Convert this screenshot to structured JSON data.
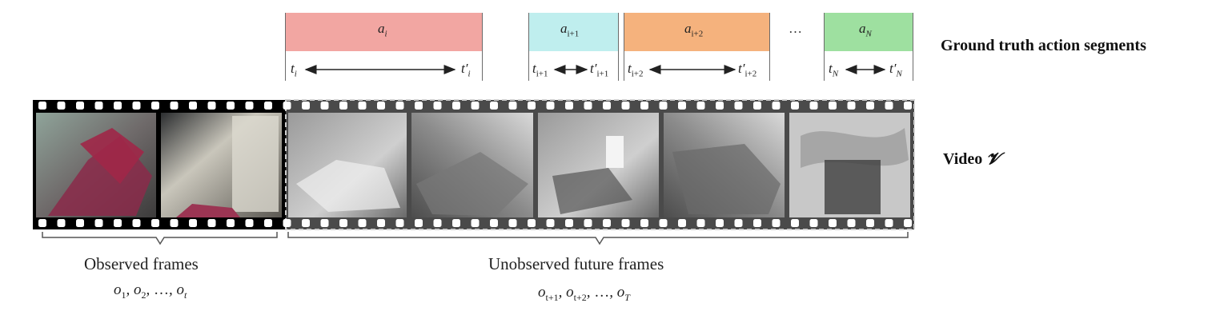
{
  "segments": [
    {
      "action": "a",
      "action_sub": "i",
      "sub_italic": true,
      "t_start": "t",
      "t_start_sub": "i",
      "t_end": "t′",
      "t_end_sub": "i",
      "color": "#f2a6a2"
    },
    {
      "action": "a",
      "action_sub": "i+1",
      "sub_italic": false,
      "t_start": "t",
      "t_start_sub": "i+1",
      "t_end": "t′",
      "t_end_sub": "i+1",
      "color": "#bfeeee"
    },
    {
      "action": "a",
      "action_sub": "i+2",
      "sub_italic": false,
      "t_start": "t",
      "t_start_sub": "i+2",
      "t_end": "t′",
      "t_end_sub": "i+2",
      "color": "#f5b27d"
    },
    {
      "action": "a",
      "action_sub": "N",
      "sub_italic": true,
      "t_start": "t",
      "t_start_sub": "N",
      "t_end": "t′",
      "t_end_sub": "N",
      "color": "#9ee0a0"
    }
  ],
  "ellipsis": "…",
  "labels": {
    "ground_truth": "Ground truth action segments",
    "video": "Video",
    "video_symbol": "𝓥",
    "observed": "Observed frames",
    "unobserved": "Unobserved future frames"
  },
  "observed_math": {
    "o1": "o",
    "o1_sub": "1",
    "o2": "o",
    "o2_sub": "2",
    "dots": "…",
    "ot": "o",
    "ot_sub": "t"
  },
  "unobserved_math": {
    "o1": "o",
    "o1_sub": "t+1",
    "o2": "o",
    "o2_sub": "t+2",
    "dots": "…",
    "oT": "o",
    "oT_sub": "T"
  },
  "colors": {
    "observed_strip": "#000000",
    "future_strip": "#4a4a4a",
    "future_border": "#cfcfcf"
  }
}
